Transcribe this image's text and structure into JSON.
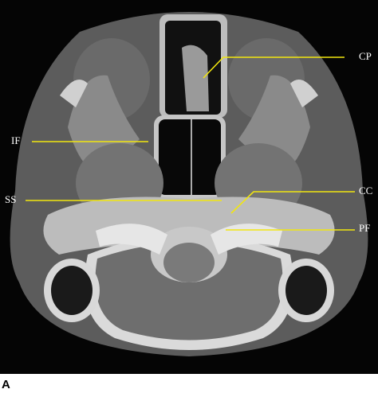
{
  "annotations": {
    "cp": "CP",
    "if": "IF",
    "ss": "SS",
    "cc": "CC",
    "pf": "PF"
  },
  "panel_label": "A"
}
